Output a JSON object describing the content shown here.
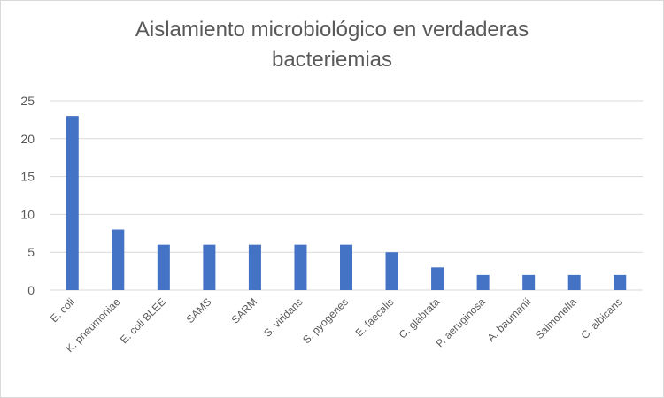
{
  "chart_data": {
    "type": "bar",
    "title_lines": [
      "Aislamiento microbiológico en verdaderas",
      "bacteriemias"
    ],
    "xlabel": "",
    "ylabel": "",
    "categories": [
      "E. coli",
      "K. pneumoniae",
      "E. coli BLEE",
      "SAMS",
      "SARM",
      "S. viridans",
      "S. pyogenes",
      "E. faecalis",
      "C. glabrata",
      "P. aeruginosa",
      "A. baumanii",
      "Salmonella",
      "C. albicans"
    ],
    "values": [
      23,
      8,
      6,
      6,
      6,
      6,
      6,
      5,
      3,
      2,
      2,
      2,
      2
    ],
    "ylim": [
      0,
      25
    ],
    "yticks": [
      0,
      5,
      10,
      15,
      20,
      25
    ],
    "grid": true,
    "legend": "none",
    "bar_color": "#4472c4",
    "grid_color": "#d9d9d9",
    "text_color": "#595959"
  }
}
